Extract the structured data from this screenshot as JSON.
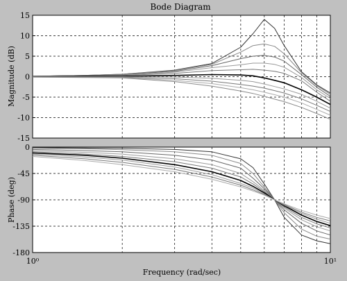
{
  "chart_data": [
    {
      "type": "line",
      "title": "Bode Diagram",
      "xlabel": "Frequency (rad/sec)",
      "ylabel": "Magnitude (dB)",
      "x_scale": "log",
      "xlim": [
        1,
        10
      ],
      "ylim": [
        -15,
        15
      ],
      "yticks": [
        "15",
        "10",
        "5",
        "0",
        "-5",
        "-10",
        "-15"
      ],
      "xtick_labels": [
        "10⁰",
        "10¹"
      ],
      "grid": true,
      "x": [
        1,
        1.5,
        2,
        3,
        4,
        5,
        5.5,
        6,
        6.5,
        7,
        8,
        9,
        10
      ],
      "series": [
        {
          "values": [
            0.1,
            0.3,
            0.6,
            1.6,
            3.2,
            7.2,
            10.5,
            14.0,
            11.8,
            7.6,
            1.2,
            -2.0,
            -4.0
          ]
        },
        {
          "values": [
            0.1,
            0.3,
            0.6,
            1.5,
            3.0,
            6.0,
            7.6,
            8.0,
            7.4,
            5.6,
            1.0,
            -2.2,
            -4.3
          ]
        },
        {
          "values": [
            0.1,
            0.3,
            0.5,
            1.3,
            2.7,
            4.4,
            5.0,
            5.2,
            4.8,
            3.8,
            0.5,
            -2.6,
            -4.8
          ]
        },
        {
          "values": [
            0.1,
            0.2,
            0.4,
            1.1,
            2.2,
            2.9,
            3.3,
            3.3,
            3.0,
            2.3,
            -0.2,
            -3.2,
            -5.3
          ]
        },
        {
          "values": [
            0.1,
            0.2,
            0.3,
            0.8,
            1.5,
            1.7,
            1.8,
            1.6,
            1.3,
            0.8,
            -1.0,
            -3.8,
            -6.0
          ]
        },
        {
          "values": [
            0.0,
            0.1,
            0.1,
            0.3,
            0.5,
            0.4,
            0.2,
            -0.3,
            -0.9,
            -1.5,
            -3.2,
            -5.0,
            -6.8
          ]
        },
        {
          "values": [
            0.0,
            0.0,
            0.0,
            -0.1,
            -0.4,
            -0.9,
            -1.2,
            -1.8,
            -2.4,
            -3.0,
            -4.3,
            -6.0,
            -7.7
          ]
        },
        {
          "values": [
            0.0,
            0.0,
            -0.1,
            -0.5,
            -1.1,
            -1.9,
            -2.3,
            -2.8,
            -3.4,
            -4.0,
            -5.4,
            -7.0,
            -8.5
          ]
        },
        {
          "values": [
            -0.1,
            -0.1,
            -0.2,
            -0.9,
            -1.7,
            -2.7,
            -3.2,
            -3.8,
            -4.4,
            -5.0,
            -6.4,
            -8.0,
            -9.4
          ]
        },
        {
          "values": [
            -0.1,
            -0.2,
            -0.3,
            -1.2,
            -2.3,
            -3.5,
            -4.1,
            -4.8,
            -5.5,
            -6.1,
            -7.5,
            -9.0,
            -10.4
          ]
        }
      ]
    },
    {
      "type": "line",
      "xlabel": "Frequency (rad/sec)",
      "ylabel": "Phase (deg)",
      "x_scale": "log",
      "xlim": [
        1,
        10
      ],
      "ylim": [
        -180,
        0
      ],
      "yticks": [
        "0",
        "-45",
        "-90",
        "-135",
        "-180"
      ],
      "xtick_labels": [
        "10⁰",
        "10¹"
      ],
      "grid": true,
      "x": [
        1,
        1.5,
        2,
        3,
        4,
        5,
        5.5,
        6,
        6.5,
        7,
        8,
        9,
        10
      ],
      "series": [
        {
          "values": [
            -1,
            -1.5,
            -2,
            -4,
            -8,
            -20,
            -35,
            -63,
            -90,
            -120,
            -150,
            -160,
            -165
          ]
        },
        {
          "values": [
            -2,
            -3,
            -4.5,
            -8,
            -14,
            -28,
            -45,
            -68,
            -90,
            -112,
            -140,
            -152,
            -157
          ]
        },
        {
          "values": [
            -4,
            -6,
            -8,
            -14,
            -22,
            -36,
            -53,
            -71,
            -90,
            -107,
            -130,
            -143,
            -150
          ]
        },
        {
          "values": [
            -6,
            -9,
            -12,
            -20,
            -30,
            -45,
            -59,
            -74,
            -90,
            -104,
            -124,
            -136,
            -143
          ]
        },
        {
          "values": [
            -8,
            -12,
            -16,
            -25,
            -36,
            -51,
            -63,
            -76,
            -90,
            -102,
            -120,
            -131,
            -138
          ]
        },
        {
          "values": [
            -10,
            -14,
            -19,
            -30,
            -42,
            -57,
            -67,
            -78,
            -90,
            -100,
            -116,
            -127,
            -134
          ]
        },
        {
          "values": [
            -12,
            -17,
            -22,
            -34,
            -47,
            -62,
            -70,
            -80,
            -90,
            -99,
            -113,
            -123,
            -130
          ]
        },
        {
          "values": [
            -14,
            -20,
            -26,
            -38,
            -51,
            -65,
            -73,
            -81,
            -90,
            -98,
            -111,
            -120,
            -126
          ]
        },
        {
          "values": [
            -16,
            -23,
            -30,
            -42,
            -55,
            -68,
            -75,
            -82,
            -90,
            -97,
            -108,
            -116,
            -122
          ]
        }
      ]
    }
  ]
}
